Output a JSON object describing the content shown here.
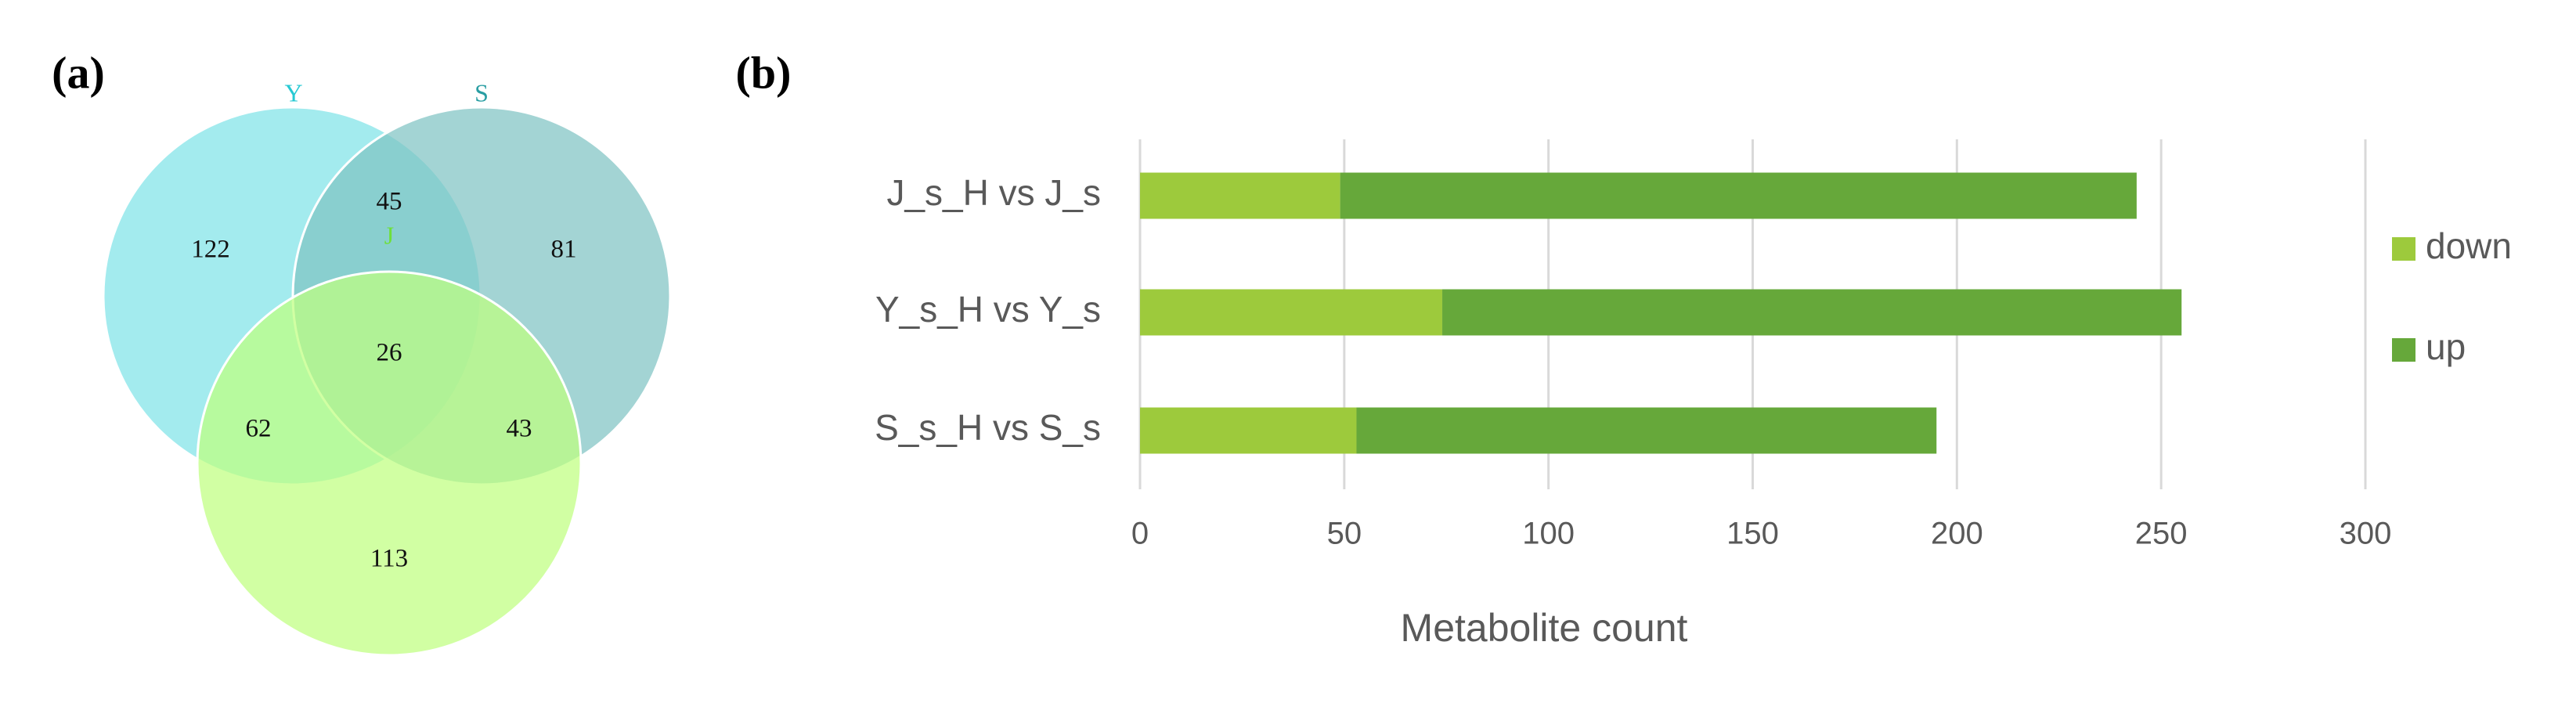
{
  "chart_data": [
    {
      "type": "venn",
      "panel_label": "(a)",
      "sets": [
        {
          "name": "Y",
          "color": "#7fe3e8",
          "label_color": "#27c9d3"
        },
        {
          "name": "S",
          "color": "#7fc4c4",
          "label_color": "#2a9ea3"
        },
        {
          "name": "J",
          "color": "#bfff80",
          "label_color": "#6ee03a"
        }
      ],
      "values": [
        122,
        81,
        113,
        45,
        62,
        43,
        26
      ]
    },
    {
      "type": "stacked-barh",
      "panel_label": "(b)",
      "categories": [
        "J_s_H vs J_s",
        "Y_s_H vs Y_s",
        "S_s_H vs S_s"
      ],
      "series": [
        {
          "name": "down",
          "color": "#9dca3c",
          "values": [
            49,
            74,
            53
          ]
        },
        {
          "name": "up",
          "color": "#66a83a",
          "values": [
            195,
            181,
            142
          ]
        }
      ],
      "xlabel": "Metabolite count",
      "xlim": [
        0,
        300
      ],
      "xticks": [
        0,
        50,
        100,
        150,
        200,
        250,
        300
      ],
      "grid": true,
      "legend": "right"
    }
  ]
}
